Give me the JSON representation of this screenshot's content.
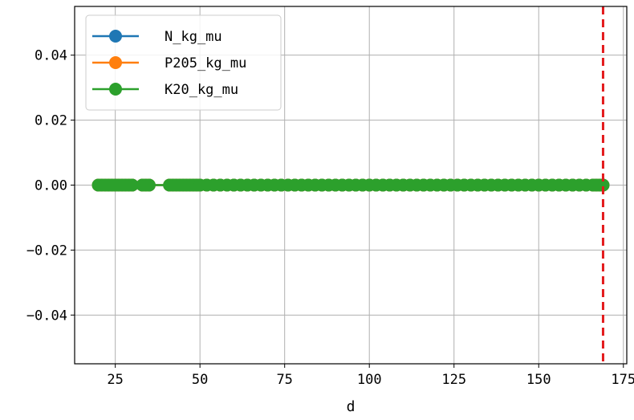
{
  "chart_data": {
    "type": "line",
    "title": "",
    "xlabel": "d",
    "ylabel": "",
    "xlim": [
      13,
      176
    ],
    "ylim": [
      -0.055,
      0.055
    ],
    "xticks": [
      25,
      50,
      75,
      100,
      125,
      150,
      175
    ],
    "yticks": [
      -0.04,
      -0.02,
      0.0,
      0.02,
      0.04
    ],
    "xtick_labels": [
      "25",
      "50",
      "75",
      "100",
      "125",
      "150",
      "175"
    ],
    "ytick_labels": [
      "−0.04",
      "−0.02",
      "0.00",
      "0.02",
      "0.04"
    ],
    "grid": true,
    "legend_position": "top-left",
    "vline": {
      "x": 169,
      "color": "#e31a1c",
      "style": "dashed"
    },
    "x": [
      20,
      21,
      22,
      23,
      24,
      25,
      26,
      27,
      28,
      29,
      30,
      33,
      34,
      35,
      41,
      42,
      43,
      44,
      45,
      46,
      47,
      48,
      49,
      50,
      52,
      54,
      56,
      58,
      60,
      62,
      64,
      66,
      68,
      70,
      72,
      74,
      76,
      78,
      80,
      82,
      84,
      86,
      88,
      90,
      92,
      94,
      96,
      98,
      100,
      102,
      104,
      106,
      108,
      110,
      112,
      114,
      116,
      118,
      120,
      122,
      124,
      126,
      128,
      130,
      132,
      134,
      136,
      138,
      140,
      142,
      144,
      146,
      148,
      150,
      152,
      154,
      156,
      158,
      160,
      162,
      164,
      166,
      167,
      168,
      169
    ],
    "series": [
      {
        "name": "N_kg_mu",
        "color": "#1f77b4",
        "values": [
          0,
          0,
          0,
          0,
          0,
          0,
          0,
          0,
          0,
          0,
          0,
          0,
          0,
          0,
          0,
          0,
          0,
          0,
          0,
          0,
          0,
          0,
          0,
          0,
          0,
          0,
          0,
          0,
          0,
          0,
          0,
          0,
          0,
          0,
          0,
          0,
          0,
          0,
          0,
          0,
          0,
          0,
          0,
          0,
          0,
          0,
          0,
          0,
          0,
          0,
          0,
          0,
          0,
          0,
          0,
          0,
          0,
          0,
          0,
          0,
          0,
          0,
          0,
          0,
          0,
          0,
          0,
          0,
          0,
          0,
          0,
          0,
          0,
          0,
          0,
          0,
          0,
          0,
          0,
          0,
          0,
          0,
          0,
          0,
          0
        ]
      },
      {
        "name": "P205_kg_mu",
        "color": "#ff7f0e",
        "values": [
          0,
          0,
          0,
          0,
          0,
          0,
          0,
          0,
          0,
          0,
          0,
          0,
          0,
          0,
          0,
          0,
          0,
          0,
          0,
          0,
          0,
          0,
          0,
          0,
          0,
          0,
          0,
          0,
          0,
          0,
          0,
          0,
          0,
          0,
          0,
          0,
          0,
          0,
          0,
          0,
          0,
          0,
          0,
          0,
          0,
          0,
          0,
          0,
          0,
          0,
          0,
          0,
          0,
          0,
          0,
          0,
          0,
          0,
          0,
          0,
          0,
          0,
          0,
          0,
          0,
          0,
          0,
          0,
          0,
          0,
          0,
          0,
          0,
          0,
          0,
          0,
          0,
          0,
          0,
          0,
          0,
          0,
          0,
          0,
          0
        ]
      },
      {
        "name": "K20_kg_mu",
        "color": "#2ca02c",
        "values": [
          0,
          0,
          0,
          0,
          0,
          0,
          0,
          0,
          0,
          0,
          0,
          0,
          0,
          0,
          0,
          0,
          0,
          0,
          0,
          0,
          0,
          0,
          0,
          0,
          0,
          0,
          0,
          0,
          0,
          0,
          0,
          0,
          0,
          0,
          0,
          0,
          0,
          0,
          0,
          0,
          0,
          0,
          0,
          0,
          0,
          0,
          0,
          0,
          0,
          0,
          0,
          0,
          0,
          0,
          0,
          0,
          0,
          0,
          0,
          0,
          0,
          0,
          0,
          0,
          0,
          0,
          0,
          0,
          0,
          0,
          0,
          0,
          0,
          0,
          0,
          0,
          0,
          0,
          0,
          0,
          0,
          0,
          0,
          0,
          0
        ]
      }
    ]
  }
}
